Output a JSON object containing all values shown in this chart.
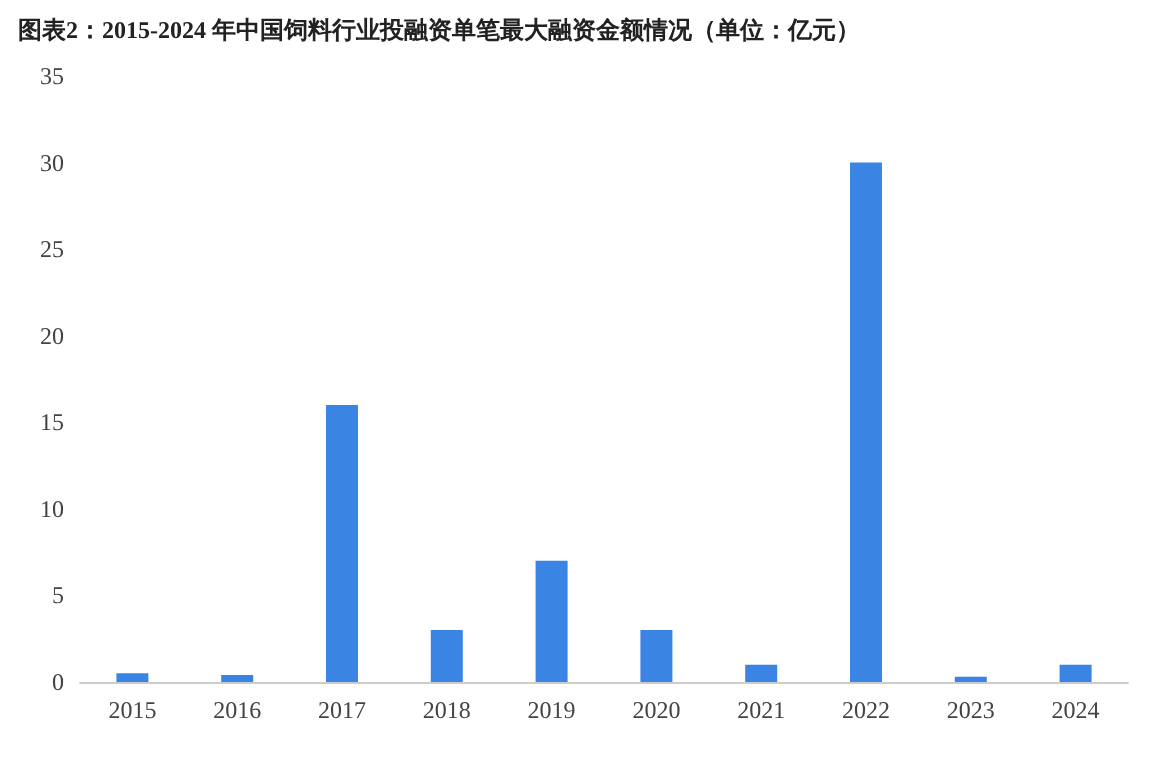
{
  "chart_data": {
    "type": "bar",
    "title": "图表2：2015-2024 年中国饲料行业投融资单笔最大融资金额情况（单位：亿元）",
    "categories": [
      "2015",
      "2016",
      "2017",
      "2018",
      "2019",
      "2020",
      "2021",
      "2022",
      "2023",
      "2024"
    ],
    "values": [
      0.5,
      0.4,
      16,
      3,
      7,
      3,
      1,
      30,
      0.3,
      1
    ],
    "color": "#3a84e3",
    "ylim": [
      0,
      35
    ],
    "yticks": [
      0,
      5,
      10,
      15,
      20,
      25,
      30,
      35
    ],
    "grid": false
  }
}
